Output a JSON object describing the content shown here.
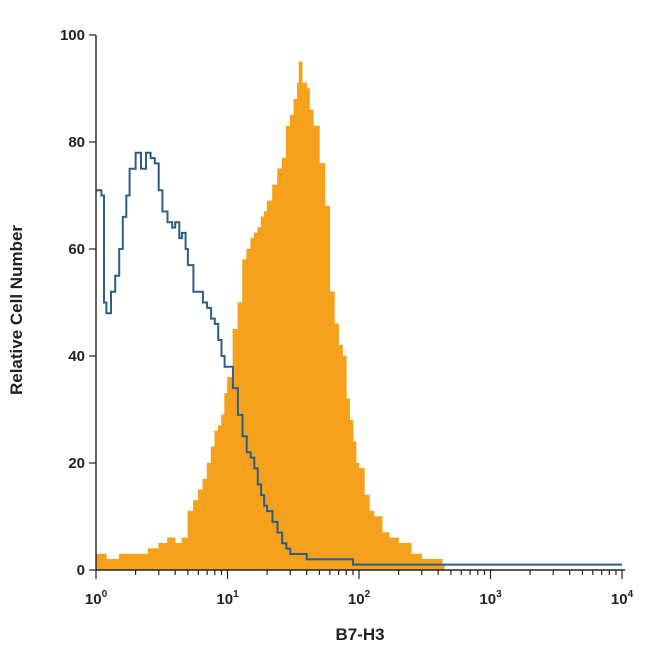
{
  "chart_data": {
    "type": "area",
    "title": "",
    "xlabel": "B7-H3",
    "ylabel": "Relative Cell Number",
    "x_scale": "log",
    "xlim": [
      1,
      10000
    ],
    "ylim": [
      0,
      100
    ],
    "x_ticks": [
      {
        "value": 1,
        "base": "10",
        "exp": "0"
      },
      {
        "value": 10,
        "base": "10",
        "exp": "1"
      },
      {
        "value": 100,
        "base": "10",
        "exp": "2"
      },
      {
        "value": 1000,
        "base": "10",
        "exp": "3"
      },
      {
        "value": 10000,
        "base": "10",
        "exp": "4"
      }
    ],
    "y_ticks": [
      0,
      20,
      40,
      60,
      80,
      100
    ],
    "grid": false,
    "legend": "none",
    "series": [
      {
        "style": "filled",
        "color": "#F5A11C",
        "points": [
          [
            1.0,
            3
          ],
          [
            1.2,
            2
          ],
          [
            1.5,
            3
          ],
          [
            2.0,
            3
          ],
          [
            2.5,
            4
          ],
          [
            3.0,
            5
          ],
          [
            3.5,
            6
          ],
          [
            4.0,
            5
          ],
          [
            4.5,
            6
          ],
          [
            5.0,
            11
          ],
          [
            5.5,
            13
          ],
          [
            6.0,
            15
          ],
          [
            6.5,
            17
          ],
          [
            7.0,
            20
          ],
          [
            7.5,
            23
          ],
          [
            8.0,
            26
          ],
          [
            8.5,
            27
          ],
          [
            9.0,
            29
          ],
          [
            9.5,
            33
          ],
          [
            10.0,
            36
          ],
          [
            11.0,
            45
          ],
          [
            12.0,
            50
          ],
          [
            13.0,
            58
          ],
          [
            14.0,
            60
          ],
          [
            15.0,
            62
          ],
          [
            16.0,
            63
          ],
          [
            17.0,
            64
          ],
          [
            18.0,
            66
          ],
          [
            19.0,
            67
          ],
          [
            20.0,
            69
          ],
          [
            22.0,
            72
          ],
          [
            24.0,
            75
          ],
          [
            26.0,
            77
          ],
          [
            28.0,
            83
          ],
          [
            30.0,
            85
          ],
          [
            32.0,
            88
          ],
          [
            34.0,
            91
          ],
          [
            35.0,
            95
          ],
          [
            37.0,
            91
          ],
          [
            40.0,
            90
          ],
          [
            42.0,
            86
          ],
          [
            45.0,
            83
          ],
          [
            50.0,
            76
          ],
          [
            55.0,
            68
          ],
          [
            60.0,
            52
          ],
          [
            65.0,
            46
          ],
          [
            70.0,
            42
          ],
          [
            75.0,
            40
          ],
          [
            80.0,
            32
          ],
          [
            85.0,
            28
          ],
          [
            90.0,
            24
          ],
          [
            95.0,
            20
          ],
          [
            100.0,
            19
          ],
          [
            110.0,
            14
          ],
          [
            120.0,
            11
          ],
          [
            130.0,
            10
          ],
          [
            150.0,
            7
          ],
          [
            170.0,
            6
          ],
          [
            200.0,
            5
          ],
          [
            250.0,
            3
          ],
          [
            300.0,
            2
          ],
          [
            350.0,
            2
          ],
          [
            400.0,
            2
          ],
          [
            430.0,
            1
          ]
        ]
      },
      {
        "style": "outline",
        "color": "#2E5D86",
        "points": [
          [
            1.0,
            71
          ],
          [
            1.1,
            70
          ],
          [
            1.15,
            50
          ],
          [
            1.2,
            48
          ],
          [
            1.3,
            52
          ],
          [
            1.4,
            55
          ],
          [
            1.5,
            60
          ],
          [
            1.6,
            66
          ],
          [
            1.7,
            70
          ],
          [
            1.8,
            75
          ],
          [
            2.0,
            78
          ],
          [
            2.2,
            75
          ],
          [
            2.4,
            78
          ],
          [
            2.6,
            77
          ],
          [
            2.8,
            76
          ],
          [
            3.0,
            71
          ],
          [
            3.2,
            67
          ],
          [
            3.5,
            65
          ],
          [
            3.8,
            64
          ],
          [
            4.0,
            65
          ],
          [
            4.3,
            62
          ],
          [
            4.5,
            63
          ],
          [
            4.8,
            60
          ],
          [
            5.0,
            57
          ],
          [
            5.5,
            52
          ],
          [
            6.0,
            52
          ],
          [
            6.5,
            50
          ],
          [
            7.0,
            49
          ],
          [
            7.5,
            47
          ],
          [
            8.0,
            46
          ],
          [
            8.5,
            43
          ],
          [
            9.0,
            40
          ],
          [
            9.5,
            38
          ],
          [
            10.0,
            38
          ],
          [
            11.0,
            34
          ],
          [
            12.0,
            29
          ],
          [
            13.0,
            25
          ],
          [
            14.0,
            22
          ],
          [
            15.0,
            21
          ],
          [
            16.0,
            19
          ],
          [
            17.0,
            16
          ],
          [
            18.0,
            14
          ],
          [
            19.0,
            12
          ],
          [
            20.0,
            11
          ],
          [
            22.0,
            9
          ],
          [
            24.0,
            7
          ],
          [
            26.0,
            5
          ],
          [
            28.0,
            4
          ],
          [
            30.0,
            3
          ],
          [
            35.0,
            3
          ],
          [
            40.0,
            2
          ],
          [
            50.0,
            2
          ],
          [
            60.0,
            2
          ],
          [
            70.0,
            2
          ],
          [
            80.0,
            2
          ],
          [
            90.0,
            1
          ],
          [
            100.0,
            1
          ],
          [
            200.0,
            1
          ],
          [
            500.0,
            1
          ],
          [
            1000.0,
            1
          ],
          [
            10000.0,
            1
          ]
        ]
      }
    ]
  }
}
